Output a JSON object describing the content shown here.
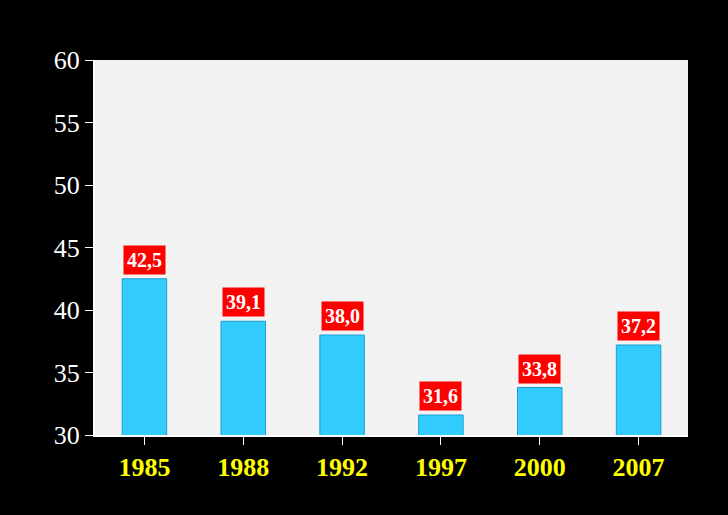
{
  "chart_data": {
    "type": "bar",
    "categories": [
      "1985",
      "1988",
      "1992",
      "1997",
      "2000",
      "2007"
    ],
    "values": [
      42.5,
      39.1,
      38.0,
      31.6,
      33.8,
      37.2
    ],
    "value_labels": [
      "42,5",
      "39,1",
      "38,0",
      "31,6",
      "33,8",
      "37,2"
    ],
    "color": "#33ccff",
    "ylim": [
      30,
      60
    ],
    "yticks": [
      30,
      35,
      40,
      45,
      50,
      55,
      60
    ],
    "grid": false,
    "data_labels": true
  }
}
